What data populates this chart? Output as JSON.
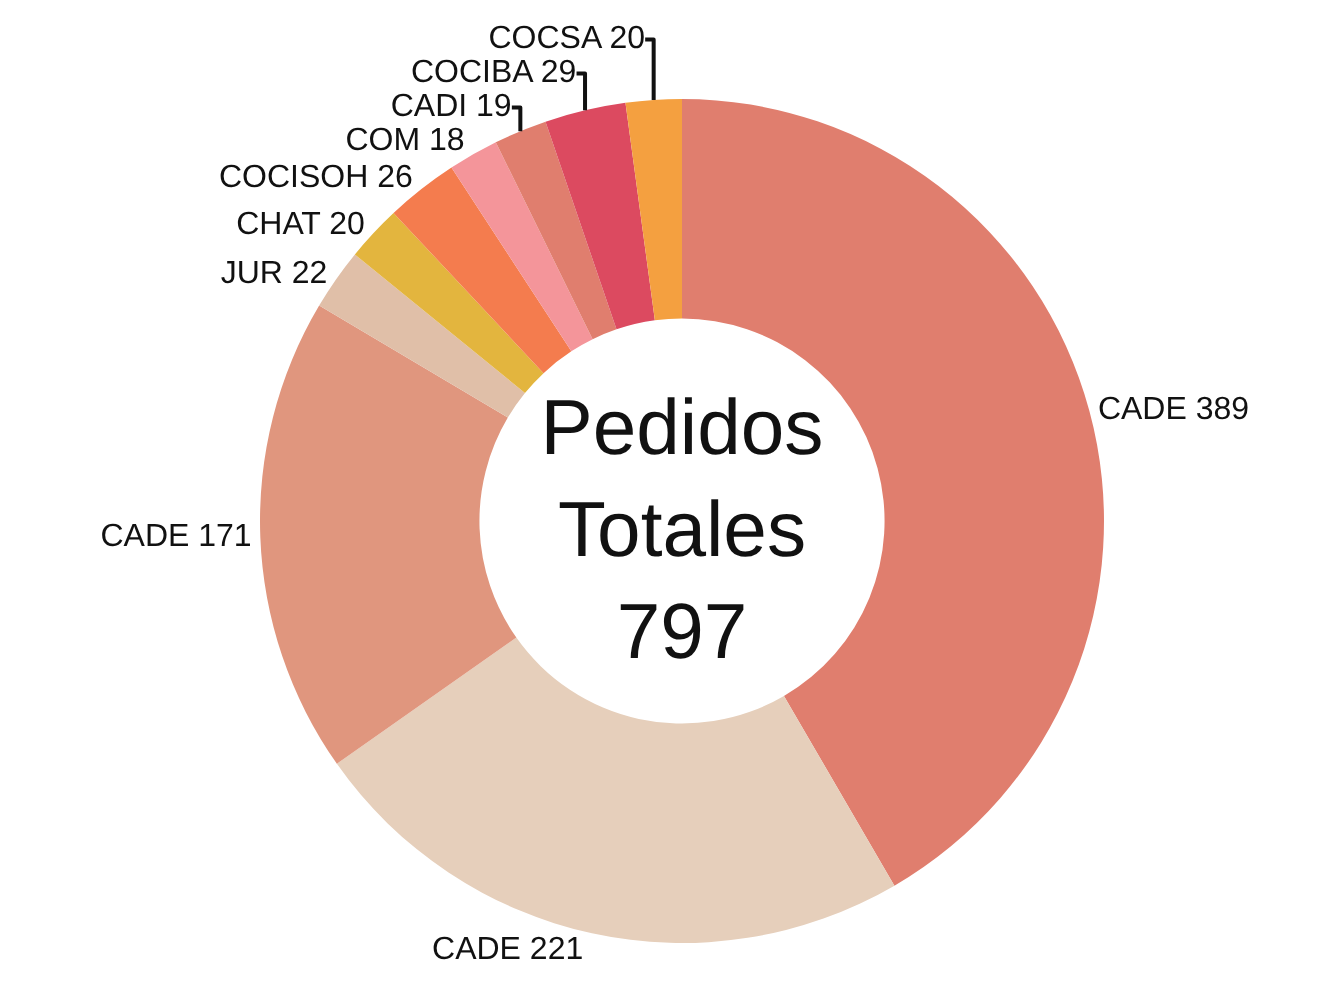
{
  "chart_data": {
    "type": "donut",
    "title": "Pedidos Totales 797",
    "categories": [
      "CADE 389",
      "CADE 221",
      "CADE 171",
      "JUR 22",
      "CHAT 20",
      "COCISOH 26",
      "COM 18",
      "CADI 19",
      "COCIBA 29",
      "COCSA 20"
    ],
    "values": [
      389,
      221,
      171,
      22,
      20,
      26,
      18,
      19,
      29,
      20
    ],
    "colors": [
      "#e07e6e",
      "#e6cfbb",
      "#e0967e",
      "#e0bfa8",
      "#e3b53e",
      "#f47c4e",
      "#f4959a",
      "#e07e6e",
      "#dc4a60",
      "#f4a040"
    ],
    "legend": false
  }
}
